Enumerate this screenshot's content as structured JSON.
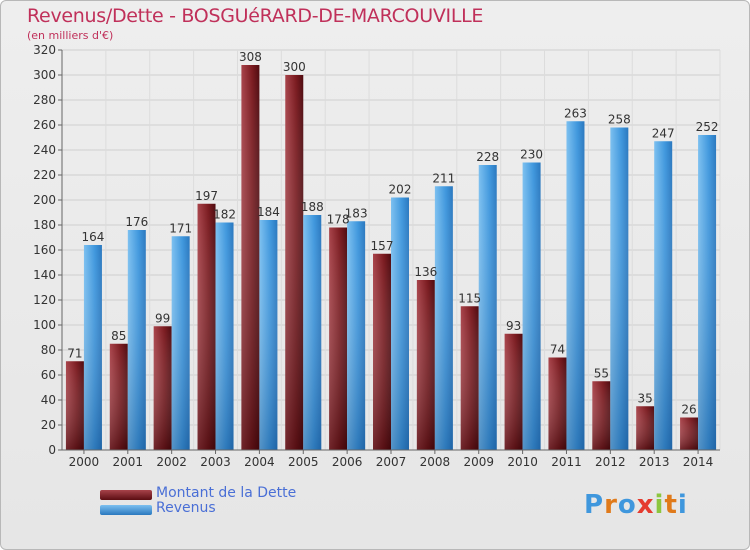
{
  "header": {
    "title": "Revenus/Dette - BOSGUéRARD-DE-MARCOUVILLE",
    "subtitle": "(en milliers d'€)"
  },
  "legend": {
    "dette_label": "Montant de la Dette",
    "revenus_label": "Revenus"
  },
  "logo": {
    "text": "Proxiti"
  },
  "colors": {
    "dette": "#7a1a1f",
    "revenus": "#3f97dd",
    "title": "#c0305a",
    "legend_text": "#4a6fd6"
  },
  "chart_data": {
    "type": "bar",
    "categories": [
      "2000",
      "2001",
      "2002",
      "2003",
      "2004",
      "2005",
      "2006",
      "2007",
      "2008",
      "2009",
      "2010",
      "2011",
      "2012",
      "2013",
      "2014"
    ],
    "series": [
      {
        "name": "Montant de la Dette",
        "values": [
          71,
          85,
          99,
          197,
          308,
          300,
          178,
          157,
          136,
          115,
          93,
          74,
          55,
          35,
          26
        ]
      },
      {
        "name": "Revenus",
        "values": [
          164,
          176,
          171,
          182,
          184,
          188,
          183,
          202,
          211,
          228,
          230,
          263,
          258,
          247,
          252
        ]
      }
    ],
    "yticks": [
      "0",
      "20",
      "40",
      "60",
      "80",
      "100",
      "120",
      "140",
      "160",
      "180",
      "200",
      "220",
      "240",
      "260",
      "280",
      "300",
      "320"
    ],
    "ylim": [
      0,
      320
    ],
    "grid": true
  }
}
